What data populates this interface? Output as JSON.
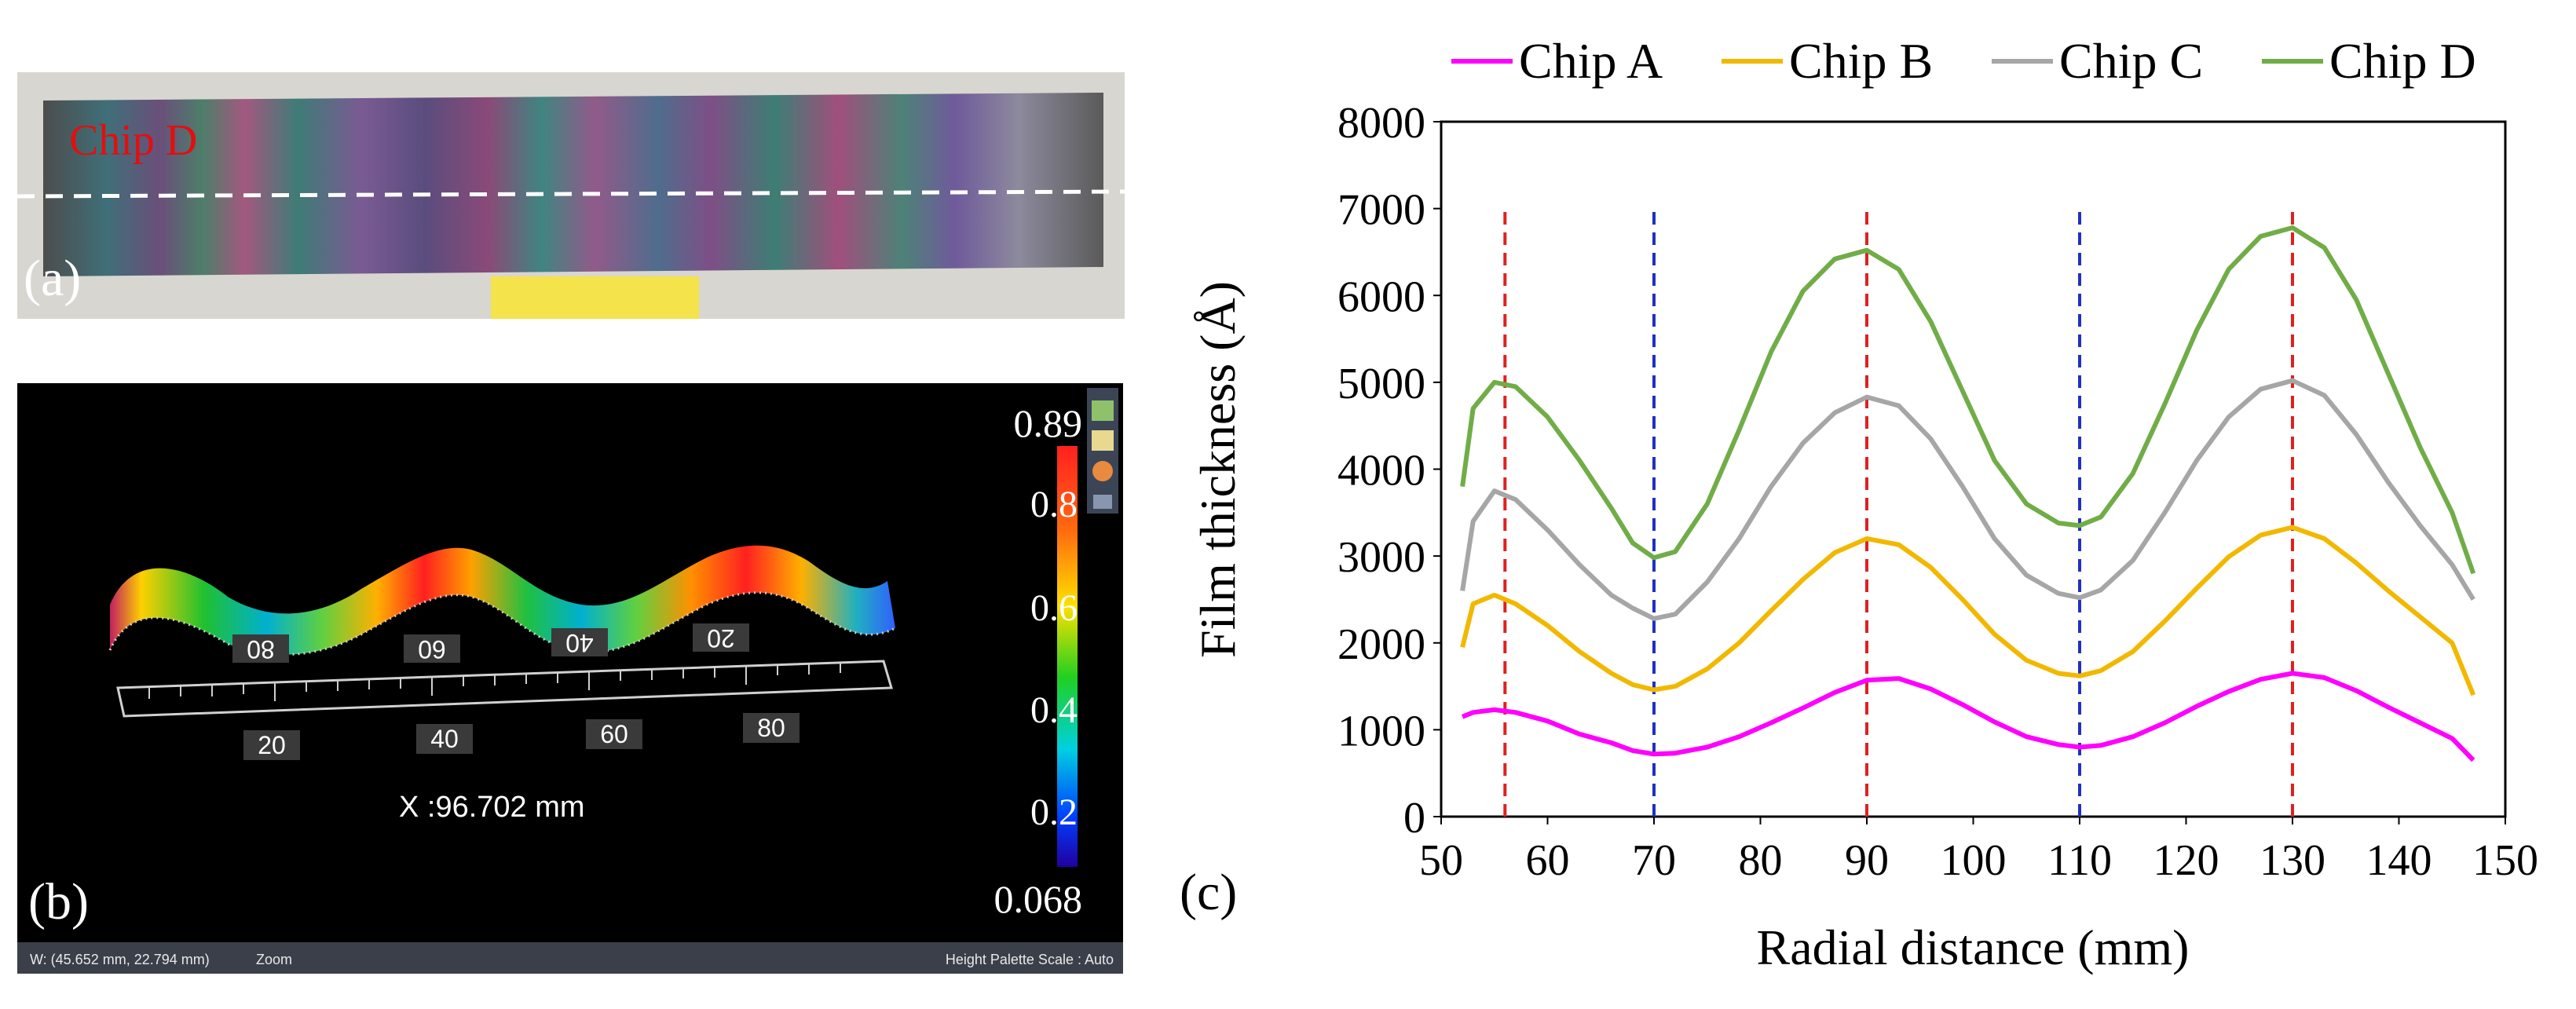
{
  "panel_a": {
    "chip_label": "Chip D",
    "panel_letter": "(a)",
    "colors": {
      "chip_label": "#e01010",
      "scan_line": "#ffffff"
    }
  },
  "panel_b": {
    "panel_letter": "(b)",
    "colorbar": {
      "max_label": "0.89",
      "min_label": "0.068",
      "ticks": [
        "0.8",
        "0.6",
        "0.4",
        "0.2"
      ]
    },
    "back_ruler_labels": [
      "80",
      "60",
      "40",
      "20"
    ],
    "front_ruler_labels": [
      "20",
      "40",
      "60",
      "80"
    ],
    "x_readout": "X :96.702 mm",
    "status": {
      "left": "W: (45.652 mm, 22.794 mm)",
      "zoom": "Zoom",
      "right": "Height Palette Scale : Auto"
    }
  },
  "panel_c_letter": "(c)",
  "chart_data": {
    "type": "line",
    "xlabel": "Radial distance (mm)",
    "ylabel": "Film thickness (Å)",
    "xlim": [
      50,
      150
    ],
    "ylim": [
      0,
      8000
    ],
    "xticks": [
      "50",
      "60",
      "70",
      "80",
      "90",
      "100",
      "110",
      "120",
      "130",
      "140",
      "150"
    ],
    "yticks": [
      "0",
      "1000",
      "2000",
      "3000",
      "4000",
      "5000",
      "6000",
      "7000",
      "8000"
    ],
    "legend_position": "top",
    "grid": false,
    "series": [
      {
        "name": "Chip A",
        "color": "#ff00ff",
        "x": [
          52,
          53,
          55,
          57,
          60,
          63,
          66,
          68,
          70,
          72,
          75,
          78,
          81,
          84,
          87,
          90,
          93,
          96,
          99,
          102,
          105,
          108,
          110,
          112,
          115,
          118,
          121,
          124,
          127,
          130,
          133,
          136,
          139,
          142,
          145,
          147
        ],
        "y": [
          1150,
          1200,
          1230,
          1200,
          1100,
          950,
          850,
          760,
          720,
          730,
          800,
          920,
          1080,
          1250,
          1430,
          1570,
          1590,
          1470,
          1290,
          1090,
          920,
          830,
          800,
          820,
          920,
          1080,
          1270,
          1440,
          1580,
          1650,
          1600,
          1450,
          1260,
          1080,
          900,
          650
        ]
      },
      {
        "name": "Chip B",
        "color": "#f2b800",
        "x": [
          52,
          53,
          55,
          57,
          60,
          63,
          66,
          68,
          70,
          72,
          75,
          78,
          81,
          84,
          87,
          90,
          93,
          96,
          99,
          102,
          105,
          108,
          110,
          112,
          115,
          118,
          121,
          124,
          127,
          130,
          133,
          136,
          139,
          142,
          145,
          147
        ],
        "y": [
          1950,
          2450,
          2550,
          2450,
          2200,
          1900,
          1650,
          1520,
          1460,
          1500,
          1700,
          2000,
          2370,
          2730,
          3040,
          3200,
          3130,
          2870,
          2500,
          2100,
          1800,
          1650,
          1620,
          1680,
          1900,
          2250,
          2630,
          2990,
          3240,
          3330,
          3200,
          2920,
          2600,
          2300,
          2000,
          1400
        ]
      },
      {
        "name": "Chip C",
        "color": "#a6a6a6",
        "x": [
          52,
          53,
          55,
          57,
          60,
          63,
          66,
          68,
          70,
          72,
          75,
          78,
          81,
          84,
          87,
          90,
          93,
          96,
          99,
          102,
          105,
          108,
          110,
          112,
          115,
          118,
          121,
          124,
          127,
          130,
          133,
          136,
          139,
          142,
          145,
          147
        ],
        "y": [
          2600,
          3400,
          3750,
          3650,
          3300,
          2900,
          2550,
          2400,
          2280,
          2330,
          2700,
          3200,
          3800,
          4300,
          4650,
          4830,
          4730,
          4350,
          3800,
          3200,
          2780,
          2570,
          2520,
          2610,
          2950,
          3500,
          4100,
          4600,
          4920,
          5020,
          4850,
          4400,
          3850,
          3350,
          2900,
          2500
        ]
      },
      {
        "name": "Chip D",
        "color": "#70ad47",
        "x": [
          52,
          53,
          55,
          57,
          60,
          63,
          66,
          68,
          70,
          72,
          75,
          78,
          81,
          84,
          87,
          90,
          93,
          96,
          99,
          102,
          105,
          108,
          110,
          112,
          115,
          118,
          121,
          124,
          127,
          130,
          133,
          136,
          139,
          142,
          145,
          147
        ],
        "y": [
          3800,
          4700,
          5000,
          4950,
          4600,
          4100,
          3550,
          3150,
          2980,
          3050,
          3600,
          4450,
          5350,
          6050,
          6420,
          6520,
          6300,
          5700,
          4900,
          4100,
          3600,
          3380,
          3350,
          3450,
          3950,
          4750,
          5600,
          6300,
          6680,
          6780,
          6550,
          5950,
          5100,
          4250,
          3500,
          2800
        ]
      }
    ],
    "reference_lines": [
      {
        "x": 56,
        "color": "#e02020",
        "style": "dashed"
      },
      {
        "x": 70,
        "color": "#2030c0",
        "style": "dashed"
      },
      {
        "x": 90,
        "color": "#e02020",
        "style": "dashed"
      },
      {
        "x": 110,
        "color": "#2030c0",
        "style": "dashed"
      },
      {
        "x": 130,
        "color": "#e02020",
        "style": "dashed"
      }
    ]
  }
}
